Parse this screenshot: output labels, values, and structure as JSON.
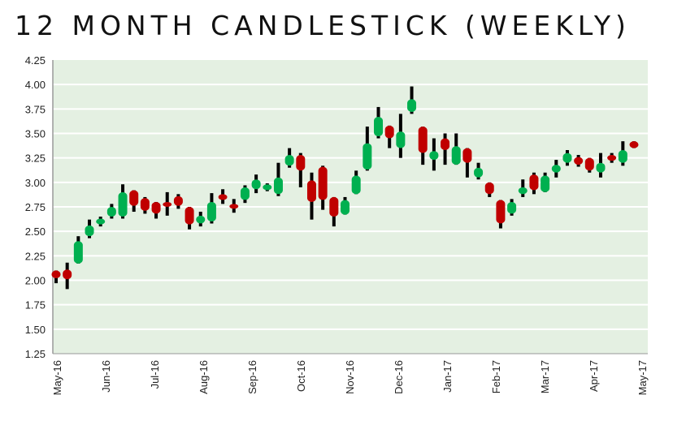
{
  "chart_data": {
    "type": "candlestick",
    "title": "12 MONTH CANDLESTICK (WEEKLY)",
    "xlabel": "",
    "ylabel": "",
    "ylim": [
      1.25,
      4.25
    ],
    "yticks": [
      "4.25",
      "4.00",
      "3.75",
      "3.50",
      "3.25",
      "3.00",
      "2.75",
      "2.50",
      "2.25",
      "2.00",
      "1.75",
      "1.50",
      "1.25"
    ],
    "xticks": [
      "May-16",
      "Jun-16",
      "Jul-16",
      "Aug-16",
      "Sep-16",
      "Oct-16",
      "Nov-16",
      "Dec-16",
      "Jan-17",
      "Feb-17",
      "Mar-17",
      "Apr-17",
      "May-17"
    ],
    "grid": true,
    "colors": {
      "up": "#00b050",
      "down": "#c00000",
      "wick": "#000000",
      "plot_bg": "#e4f0e2",
      "grid": "#ffffff"
    },
    "ohlc": [
      [
        2.1,
        2.1,
        1.97,
        2.02
      ],
      [
        2.11,
        2.18,
        1.91,
        2.01
      ],
      [
        2.17,
        2.45,
        2.17,
        2.4
      ],
      [
        2.45,
        2.62,
        2.43,
        2.56
      ],
      [
        2.57,
        2.65,
        2.55,
        2.63
      ],
      [
        2.65,
        2.78,
        2.63,
        2.75
      ],
      [
        2.65,
        2.98,
        2.63,
        2.9
      ],
      [
        2.92,
        2.92,
        2.7,
        2.76
      ],
      [
        2.84,
        2.85,
        2.68,
        2.71
      ],
      [
        2.8,
        2.8,
        2.63,
        2.68
      ],
      [
        2.8,
        2.9,
        2.66,
        2.75
      ],
      [
        2.86,
        2.88,
        2.73,
        2.76
      ],
      [
        2.75,
        2.75,
        2.52,
        2.57
      ],
      [
        2.58,
        2.7,
        2.55,
        2.66
      ],
      [
        2.6,
        2.89,
        2.58,
        2.8
      ],
      [
        2.88,
        2.93,
        2.78,
        2.82
      ],
      [
        2.78,
        2.83,
        2.69,
        2.73
      ],
      [
        2.82,
        2.97,
        2.79,
        2.95
      ],
      [
        2.93,
        3.08,
        2.89,
        3.03
      ],
      [
        2.92,
        2.99,
        2.91,
        2.98
      ],
      [
        2.88,
        3.2,
        2.86,
        3.05
      ],
      [
        3.17,
        3.35,
        3.15,
        3.28
      ],
      [
        3.28,
        3.3,
        2.95,
        3.12
      ],
      [
        3.02,
        3.1,
        2.62,
        2.8
      ],
      [
        3.16,
        3.17,
        2.72,
        2.82
      ],
      [
        2.85,
        2.85,
        2.55,
        2.65
      ],
      [
        2.67,
        2.85,
        2.67,
        2.82
      ],
      [
        2.88,
        3.12,
        2.88,
        3.07
      ],
      [
        3.13,
        3.57,
        3.12,
        3.4
      ],
      [
        3.47,
        3.77,
        3.45,
        3.67
      ],
      [
        3.58,
        3.58,
        3.35,
        3.45
      ],
      [
        3.35,
        3.7,
        3.25,
        3.52
      ],
      [
        3.72,
        3.98,
        3.7,
        3.85
      ],
      [
        3.57,
        3.57,
        3.18,
        3.3
      ],
      [
        3.23,
        3.45,
        3.12,
        3.32
      ],
      [
        3.45,
        3.5,
        3.18,
        3.33
      ],
      [
        3.18,
        3.5,
        3.18,
        3.37
      ],
      [
        3.35,
        3.35,
        3.05,
        3.2
      ],
      [
        3.05,
        3.2,
        3.03,
        3.15
      ],
      [
        3.0,
        3.0,
        2.85,
        2.88
      ],
      [
        2.82,
        2.82,
        2.53,
        2.58
      ],
      [
        2.68,
        2.83,
        2.66,
        2.8
      ],
      [
        2.88,
        3.03,
        2.85,
        2.95
      ],
      [
        3.08,
        3.1,
        2.88,
        2.92
      ],
      [
        2.9,
        3.1,
        2.9,
        3.07
      ],
      [
        3.1,
        3.23,
        3.05,
        3.18
      ],
      [
        3.2,
        3.33,
        3.17,
        3.3
      ],
      [
        3.26,
        3.28,
        3.16,
        3.18
      ],
      [
        3.25,
        3.25,
        3.1,
        3.12
      ],
      [
        3.1,
        3.3,
        3.05,
        3.2
      ],
      [
        3.28,
        3.3,
        3.2,
        3.22
      ],
      [
        3.2,
        3.42,
        3.17,
        3.33
      ],
      [
        3.42,
        3.42,
        3.35,
        3.35
      ]
    ]
  }
}
